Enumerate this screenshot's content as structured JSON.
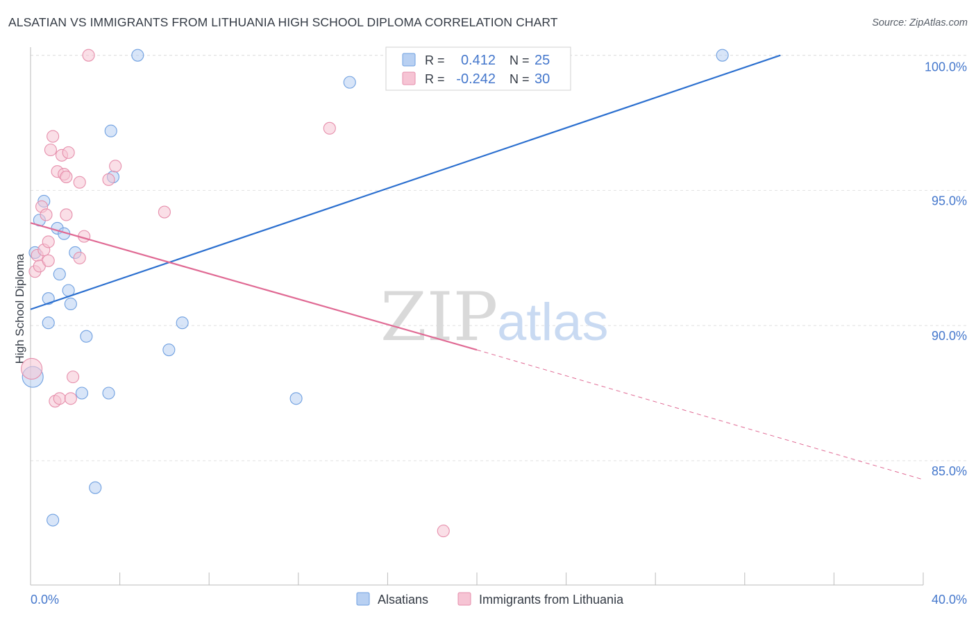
{
  "header": {
    "title": "ALSATIAN VS IMMIGRANTS FROM LITHUANIA HIGH SCHOOL DIPLOMA CORRELATION CHART",
    "source": "Source: ZipAtlas.com"
  },
  "watermark": {
    "zip": "ZIP",
    "atlas": "atlas"
  },
  "colors": {
    "series1": "#6e9fe0",
    "series1_fill": "#b8d0f2",
    "series1_line": "#2b6fcf",
    "series2": "#e68eab",
    "series2_fill": "#f6c4d4",
    "series2_line": "#e06a94",
    "tick_label": "#4477cc",
    "grid": "#e0e0e0",
    "axis": "#bbbbbb"
  },
  "legend": {
    "rows": [
      {
        "r_label": "R =",
        "r_value": "0.412",
        "n_label": "N =",
        "n_value": "25"
      },
      {
        "r_label": "R =",
        "r_value": "-0.242",
        "n_label": "N =",
        "n_value": "30"
      }
    ]
  },
  "chart_data": {
    "type": "scatter",
    "title": "ALSATIAN VS IMMIGRANTS FROM LITHUANIA HIGH SCHOOL DIPLOMA CORRELATION CHART",
    "xlabel": "",
    "ylabel": "High School Diploma",
    "xlim": [
      0,
      40
    ],
    "ylim": [
      80.4,
      100.3
    ],
    "x_tick_labels": [
      "0.0%",
      "40.0%"
    ],
    "y_ticks": [
      85,
      90,
      95,
      100
    ],
    "y_tick_labels": [
      "85.0%",
      "90.0%",
      "95.0%",
      "100.0%"
    ],
    "grid": true,
    "legend_position": "bottom-center",
    "series": [
      {
        "name": "Alsatians",
        "points": [
          {
            "x": 0.1,
            "y": 88.1
          },
          {
            "x": 0.2,
            "y": 92.7
          },
          {
            "x": 0.4,
            "y": 93.9
          },
          {
            "x": 0.6,
            "y": 94.6
          },
          {
            "x": 0.8,
            "y": 91.0
          },
          {
            "x": 0.8,
            "y": 90.1
          },
          {
            "x": 1.0,
            "y": 82.8
          },
          {
            "x": 1.2,
            "y": 93.6
          },
          {
            "x": 1.3,
            "y": 91.9
          },
          {
            "x": 1.5,
            "y": 93.4
          },
          {
            "x": 1.7,
            "y": 91.3
          },
          {
            "x": 1.8,
            "y": 90.8
          },
          {
            "x": 2.0,
            "y": 92.7
          },
          {
            "x": 2.3,
            "y": 87.5
          },
          {
            "x": 2.5,
            "y": 89.6
          },
          {
            "x": 2.9,
            "y": 84.0
          },
          {
            "x": 3.5,
            "y": 87.5
          },
          {
            "x": 3.6,
            "y": 97.2
          },
          {
            "x": 3.7,
            "y": 95.5
          },
          {
            "x": 4.8,
            "y": 100.0
          },
          {
            "x": 6.2,
            "y": 89.1
          },
          {
            "x": 6.8,
            "y": 90.1
          },
          {
            "x": 11.9,
            "y": 87.3
          },
          {
            "x": 14.3,
            "y": 99.0
          },
          {
            "x": 31.0,
            "y": 100.0
          }
        ],
        "trend": {
          "x1": 0,
          "y1": 90.6,
          "x2": 33.6,
          "y2": 100.0
        }
      },
      {
        "name": "Immigrants from Lithuania",
        "points": [
          {
            "x": 0.05,
            "y": 88.4
          },
          {
            "x": 0.2,
            "y": 92.0
          },
          {
            "x": 0.3,
            "y": 92.6
          },
          {
            "x": 0.4,
            "y": 92.2
          },
          {
            "x": 0.5,
            "y": 94.4
          },
          {
            "x": 0.6,
            "y": 92.8
          },
          {
            "x": 0.7,
            "y": 94.1
          },
          {
            "x": 0.8,
            "y": 93.1
          },
          {
            "x": 0.8,
            "y": 92.4
          },
          {
            "x": 0.9,
            "y": 96.5
          },
          {
            "x": 1.0,
            "y": 97.0
          },
          {
            "x": 1.1,
            "y": 87.2
          },
          {
            "x": 1.2,
            "y": 95.7
          },
          {
            "x": 1.3,
            "y": 87.3
          },
          {
            "x": 1.4,
            "y": 96.3
          },
          {
            "x": 1.5,
            "y": 95.6
          },
          {
            "x": 1.6,
            "y": 95.5
          },
          {
            "x": 1.6,
            "y": 94.1
          },
          {
            "x": 1.7,
            "y": 96.4
          },
          {
            "x": 1.8,
            "y": 87.3
          },
          {
            "x": 1.9,
            "y": 88.1
          },
          {
            "x": 2.2,
            "y": 92.5
          },
          {
            "x": 2.2,
            "y": 95.3
          },
          {
            "x": 2.4,
            "y": 93.3
          },
          {
            "x": 2.6,
            "y": 100.0
          },
          {
            "x": 3.5,
            "y": 95.4
          },
          {
            "x": 3.8,
            "y": 95.9
          },
          {
            "x": 6.0,
            "y": 94.2
          },
          {
            "x": 13.4,
            "y": 97.3
          },
          {
            "x": 18.5,
            "y": 82.4
          }
        ],
        "trend": {
          "x1": 0,
          "y1": 93.8,
          "x2": 20.0,
          "y2": 89.1
        },
        "trend_extension": {
          "x1": 20.0,
          "y1": 89.1,
          "x2": 40.0,
          "y2": 84.3
        }
      }
    ]
  }
}
